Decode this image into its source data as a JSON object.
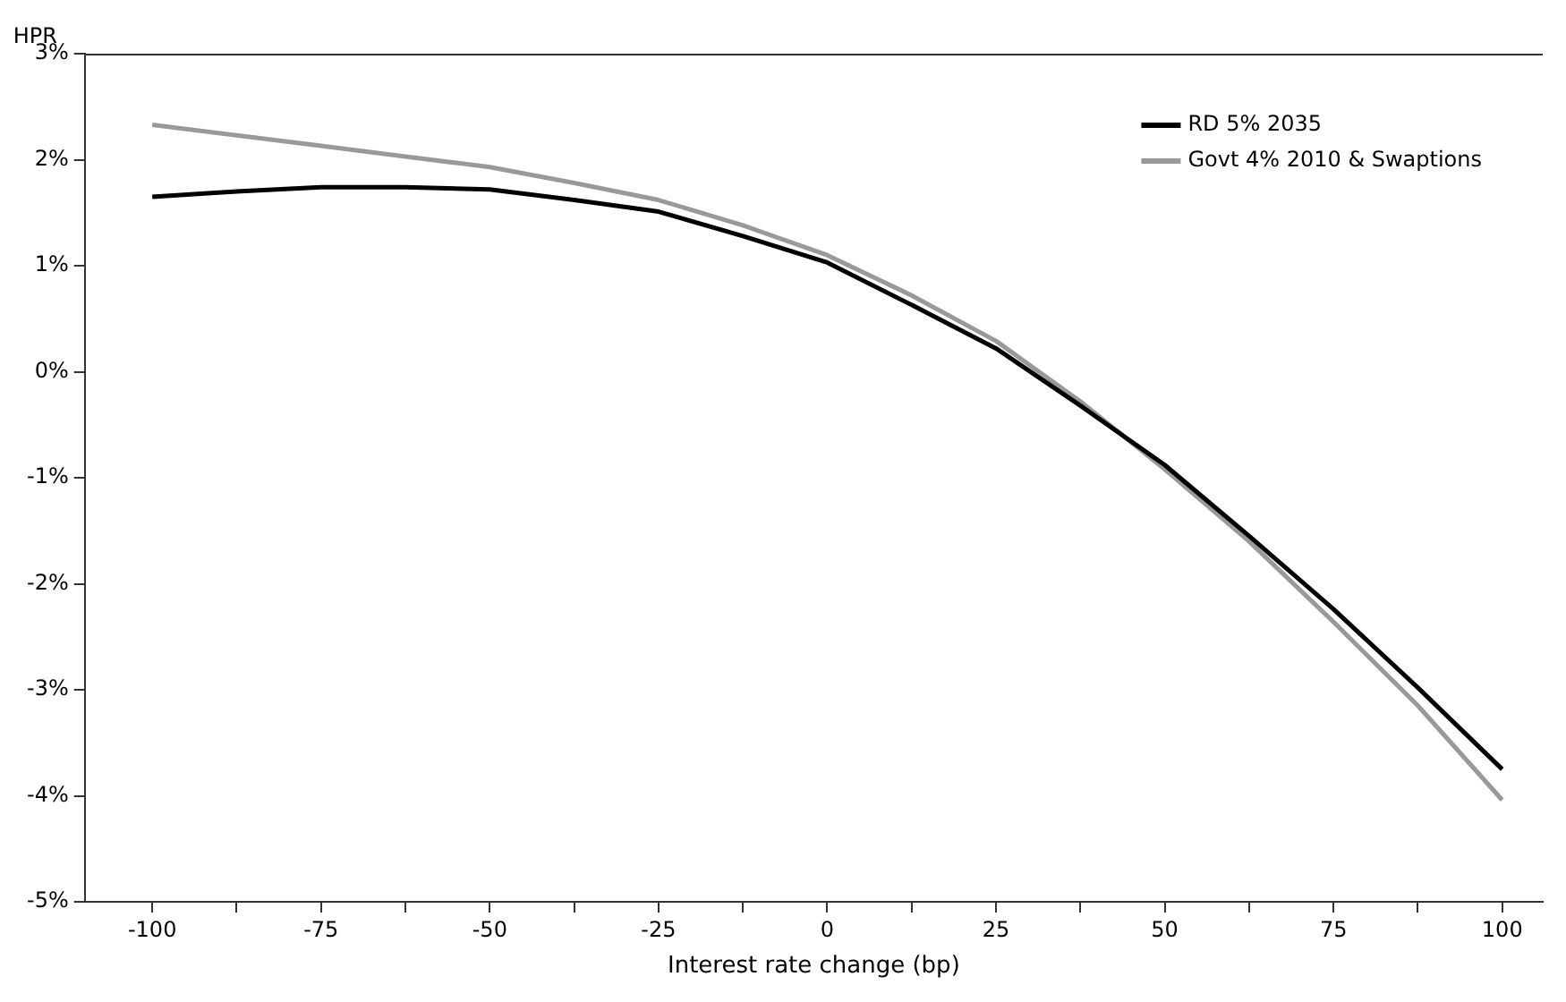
{
  "chart_data": {
    "type": "line",
    "ylabel": "HPR",
    "xlabel": "Interest rate change (bp)",
    "xlim": [
      -110,
      106
    ],
    "xticks": [
      {
        "value": -100,
        "label": "-100"
      },
      {
        "value": -87.5,
        "label": null
      },
      {
        "value": -75,
        "label": "-75"
      },
      {
        "value": -62.5,
        "label": null
      },
      {
        "value": -50,
        "label": "-50"
      },
      {
        "value": -37.5,
        "label": null
      },
      {
        "value": -25,
        "label": "-25"
      },
      {
        "value": -12.5,
        "label": null
      },
      {
        "value": 0,
        "label": "0"
      },
      {
        "value": 12.5,
        "label": null
      },
      {
        "value": 25,
        "label": "25"
      },
      {
        "value": 37.5,
        "label": null
      },
      {
        "value": 50,
        "label": "50"
      },
      {
        "value": 62.5,
        "label": null
      },
      {
        "value": 75,
        "label": "75"
      },
      {
        "value": 87.5,
        "label": null
      },
      {
        "value": 100,
        "label": "100"
      }
    ],
    "ylim": [
      -5,
      3
    ],
    "yticks": [
      {
        "value": -5,
        "label": "-5%"
      },
      {
        "value": -4,
        "label": "-4%"
      },
      {
        "value": -3,
        "label": "-3%"
      },
      {
        "value": -2,
        "label": "-2%"
      },
      {
        "value": -1,
        "label": "-1%"
      },
      {
        "value": 0,
        "label": "0%"
      },
      {
        "value": 1,
        "label": "1%"
      },
      {
        "value": 2,
        "label": "2%"
      },
      {
        "value": 3,
        "label": "3%"
      }
    ],
    "x": [
      -100,
      -87.5,
      -75,
      -62.5,
      -50,
      -37.5,
      -25,
      -12.5,
      0,
      12.5,
      25,
      37.5,
      50,
      62.5,
      75,
      87.5,
      100
    ],
    "series": [
      {
        "name": "RD 5% 2035",
        "color": "#000000",
        "values": [
          1.65,
          1.7,
          1.74,
          1.74,
          1.72,
          1.62,
          1.51,
          1.28,
          1.03,
          0.63,
          0.22,
          -0.32,
          -0.88,
          -1.55,
          -2.24,
          -2.98,
          -3.75
        ]
      },
      {
        "name": "Govt 4% 2010 & Swaptions",
        "color": "#999999",
        "values": [
          2.33,
          2.23,
          2.13,
          2.03,
          1.93,
          1.78,
          1.62,
          1.38,
          1.1,
          0.72,
          0.29,
          -0.28,
          -0.92,
          -1.6,
          -2.36,
          -3.15,
          -4.04
        ]
      }
    ],
    "grid": false,
    "legend": "top right",
    "marker": "none",
    "line_style": "solid"
  }
}
